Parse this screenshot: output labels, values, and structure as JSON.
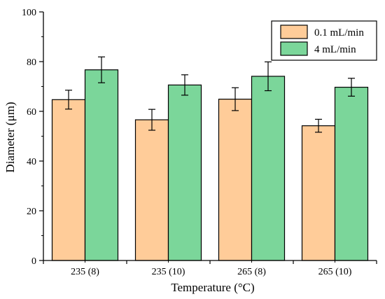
{
  "chart_data": {
    "type": "bar",
    "categories": [
      "235 (8)",
      "235 (10)",
      "265 (8)",
      "265 (10)"
    ],
    "series": [
      {
        "name": "0.1 mL/min",
        "color": "#FFCC99",
        "values": [
          64.7,
          56.6,
          64.9,
          54.2
        ],
        "errors": [
          3.8,
          4.2,
          4.6,
          2.6
        ]
      },
      {
        "name": "4 mL/min",
        "color": "#7BD69A",
        "values": [
          76.7,
          70.6,
          74.1,
          69.7
        ],
        "errors": [
          5.2,
          4.1,
          5.8,
          3.6
        ]
      }
    ],
    "xlabel": "Temperature (°C)",
    "ylabel": "Diameter (μm)",
    "ylim": [
      0,
      100
    ],
    "yticks": [
      0,
      20,
      40,
      60,
      80,
      100
    ],
    "grid": false,
    "legend_position": "top-right"
  }
}
